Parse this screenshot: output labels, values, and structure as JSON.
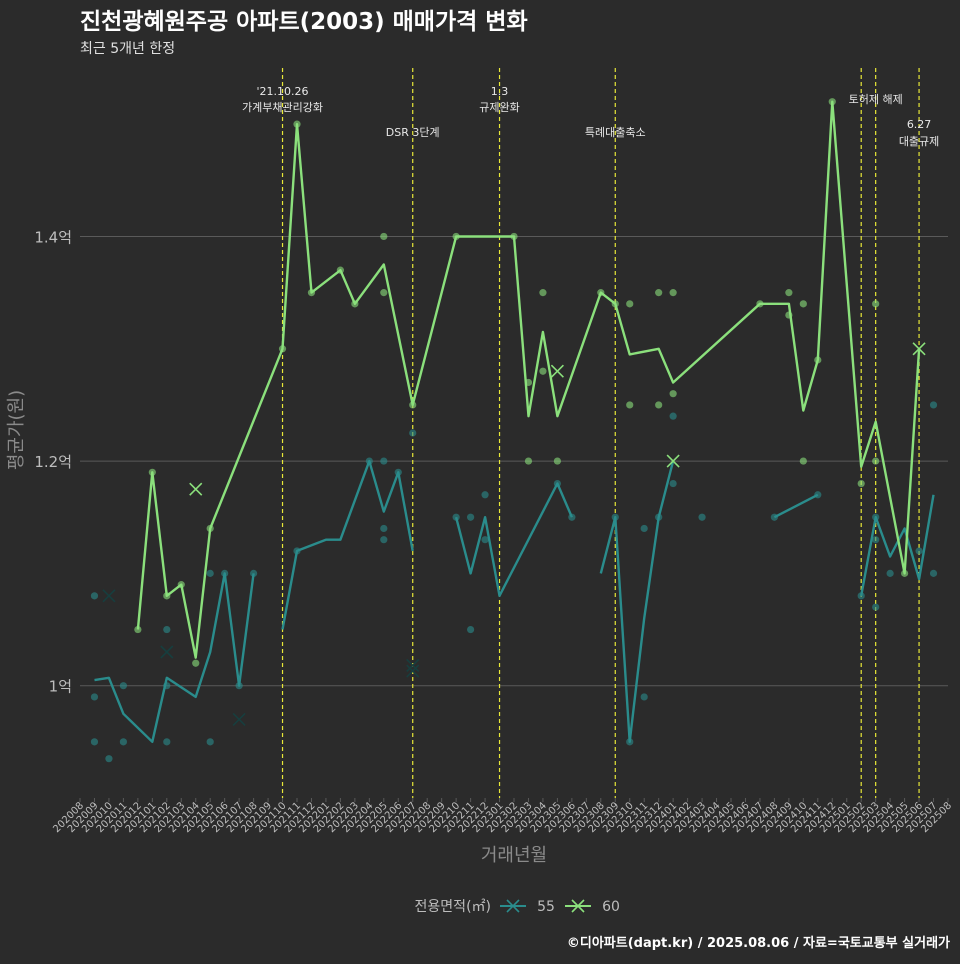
{
  "header": {
    "title": "진천광혜원주공 아파트(2003) 매매가격 변화",
    "subtitle": "최근 5개년 한정"
  },
  "footer": {
    "credit": "©디아파트(dapt.kr) / 2025.08.06 / 자료=국토교통부 실거래가"
  },
  "colors": {
    "s55": "#2a8c8c",
    "s60": "#8be07c",
    "vline": "#e8e838",
    "grid": "#5a5a5a",
    "text": "#bdbdbd"
  },
  "chart_data": {
    "type": "line",
    "xlabel": "거래년월",
    "ylabel": "평균가(원)",
    "ylim": [
      0.9,
      1.55
    ],
    "y_ticks": [
      1.0,
      1.2,
      1.4
    ],
    "y_tick_labels": [
      "1억",
      "1.2억",
      "1.4억"
    ],
    "x": [
      "202008",
      "202009",
      "202010",
      "202011",
      "202012",
      "202101",
      "202102",
      "202103",
      "202104",
      "202105",
      "202106",
      "202107",
      "202108",
      "202109",
      "202110",
      "202111",
      "202112",
      "202201",
      "202202",
      "202203",
      "202204",
      "202205",
      "202206",
      "202207",
      "202208",
      "202209",
      "202210",
      "202211",
      "202212",
      "202301",
      "202302",
      "202303",
      "202304",
      "202305",
      "202306",
      "202307",
      "202308",
      "202309",
      "202310",
      "202311",
      "202312",
      "202401",
      "202402",
      "202403",
      "202404",
      "202405",
      "202406",
      "202407",
      "202408",
      "202409",
      "202410",
      "202411",
      "202412",
      "202501",
      "202502",
      "202503",
      "202504",
      "202505",
      "202506",
      "202507",
      "202508"
    ],
    "legend": {
      "title": "전용면적(㎡)",
      "position": "bottom",
      "entries": [
        "55",
        "60"
      ]
    },
    "series": [
      {
        "name": "55",
        "line": [
          [
            1.0,
            1.005
          ],
          [
            2.0,
            1.007
          ],
          [
            3.0,
            0.975
          ],
          [
            5.0,
            0.95
          ],
          [
            6.0,
            1.007
          ],
          [
            8.0,
            0.99
          ],
          [
            9.0,
            1.03
          ],
          [
            10.0,
            1.1
          ],
          [
            11.0,
            1.0
          ],
          [
            12.0,
            1.1
          ],
          null,
          [
            14.0,
            1.05
          ],
          [
            15.0,
            1.12
          ],
          [
            17.0,
            1.13
          ],
          [
            18.0,
            1.13
          ],
          [
            20.0,
            1.2
          ],
          [
            21.0,
            1.155
          ],
          [
            22.0,
            1.19
          ],
          [
            23.0,
            1.12
          ],
          null,
          [
            26.0,
            1.15
          ],
          [
            27.0,
            1.1
          ],
          [
            28.0,
            1.15
          ],
          [
            29.0,
            1.08
          ],
          [
            33.0,
            1.18
          ],
          [
            34.0,
            1.15
          ],
          null,
          [
            36.0,
            1.1
          ],
          [
            37.0,
            1.15
          ],
          [
            38.0,
            0.95
          ],
          [
            39.0,
            1.06
          ],
          [
            40.0,
            1.15
          ],
          [
            41.0,
            1.2
          ],
          null,
          [
            48.0,
            1.15
          ],
          [
            51.0,
            1.17
          ],
          null,
          [
            54.0,
            1.08
          ],
          [
            55.0,
            1.15
          ],
          [
            56.0,
            1.115
          ],
          [
            57.0,
            1.14
          ],
          [
            58.0,
            1.095
          ],
          [
            59.0,
            1.17
          ]
        ],
        "points": [
          [
            1,
            1.08
          ],
          [
            1,
            0.99
          ],
          [
            1,
            0.95
          ],
          [
            2,
            0.935
          ],
          [
            3,
            0.95
          ],
          [
            3,
            1.0
          ],
          [
            6,
            1.05
          ],
          [
            6,
            0.95
          ],
          [
            6,
            1.0
          ],
          [
            9,
            1.1
          ],
          [
            9,
            0.95
          ],
          [
            10,
            1.1
          ],
          [
            11,
            1.0
          ],
          [
            12,
            1.1
          ],
          [
            15,
            1.12
          ],
          [
            20,
            1.2
          ],
          [
            21,
            1.2
          ],
          [
            21,
            1.14
          ],
          [
            21,
            1.13
          ],
          [
            22,
            1.19
          ],
          [
            23,
            1.225
          ],
          [
            26,
            1.15
          ],
          [
            27,
            1.05
          ],
          [
            27,
            1.15
          ],
          [
            28,
            1.17
          ],
          [
            28,
            1.13
          ],
          [
            33,
            1.18
          ],
          [
            34,
            1.15
          ],
          [
            37,
            1.15
          ],
          [
            38,
            0.95
          ],
          [
            39,
            0.99
          ],
          [
            39,
            1.14
          ],
          [
            40,
            1.15
          ],
          [
            41,
            1.24
          ],
          [
            41,
            1.18
          ],
          [
            43,
            1.15
          ],
          [
            48,
            1.15
          ],
          [
            51,
            1.17
          ],
          [
            54,
            1.08
          ],
          [
            55,
            1.07
          ],
          [
            55,
            1.13
          ],
          [
            55,
            1.15
          ],
          [
            56,
            1.1
          ],
          [
            58,
            1.12
          ],
          [
            59,
            1.25
          ],
          [
            59,
            1.1
          ]
        ],
        "crosses": [
          [
            2,
            1.08
          ],
          [
            6,
            1.03
          ],
          [
            11,
            0.97
          ],
          [
            23,
            1.013
          ],
          [
            23,
            1.018
          ]
        ]
      },
      {
        "name": "60",
        "line": [
          [
            4.0,
            1.05
          ],
          [
            5.0,
            1.19
          ],
          [
            6.0,
            1.08
          ],
          [
            7.0,
            1.09
          ],
          [
            8.0,
            1.025
          ],
          [
            9.0,
            1.14
          ],
          [
            14.0,
            1.3
          ],
          [
            15.0,
            1.5
          ],
          [
            16.0,
            1.35
          ],
          [
            18.0,
            1.37
          ],
          [
            19.0,
            1.34
          ],
          [
            21.0,
            1.375
          ],
          [
            23.0,
            1.25
          ],
          [
            26.0,
            1.4
          ],
          [
            30.0,
            1.4
          ],
          [
            31.0,
            1.24
          ],
          [
            32.0,
            1.315
          ],
          [
            33.0,
            1.24
          ],
          [
            36.0,
            1.35
          ],
          [
            37.0,
            1.34
          ],
          [
            38.0,
            1.295
          ],
          [
            40.0,
            1.3
          ],
          [
            41.0,
            1.27
          ],
          [
            47.0,
            1.34
          ],
          [
            49.0,
            1.34
          ],
          [
            50.0,
            1.245
          ],
          [
            51.0,
            1.29
          ],
          [
            52.0,
            1.52
          ],
          [
            54.0,
            1.195
          ],
          [
            55.0,
            1.235
          ],
          [
            57.0,
            1.1
          ],
          [
            58.0,
            1.3
          ]
        ],
        "points": [
          [
            4,
            1.05
          ],
          [
            5,
            1.19
          ],
          [
            6,
            1.08
          ],
          [
            7,
            1.09
          ],
          [
            8,
            1.02
          ],
          [
            9,
            1.14
          ],
          [
            14,
            1.3
          ],
          [
            15,
            1.5
          ],
          [
            16,
            1.35
          ],
          [
            18,
            1.37
          ],
          [
            19,
            1.34
          ],
          [
            21,
            1.4
          ],
          [
            21,
            1.35
          ],
          [
            23,
            1.25
          ],
          [
            26,
            1.4
          ],
          [
            30,
            1.4
          ],
          [
            31,
            1.27
          ],
          [
            31,
            1.2
          ],
          [
            32,
            1.35
          ],
          [
            32,
            1.28
          ],
          [
            33,
            1.2
          ],
          [
            36,
            1.35
          ],
          [
            37,
            1.34
          ],
          [
            38,
            1.34
          ],
          [
            38,
            1.25
          ],
          [
            40,
            1.35
          ],
          [
            40,
            1.25
          ],
          [
            41,
            1.35
          ],
          [
            41,
            1.26
          ],
          [
            47,
            1.34
          ],
          [
            49,
            1.35
          ],
          [
            49,
            1.33
          ],
          [
            50,
            1.34
          ],
          [
            50,
            1.2
          ],
          [
            51,
            1.29
          ],
          [
            52,
            1.52
          ],
          [
            54,
            1.18
          ],
          [
            55,
            1.34
          ],
          [
            55,
            1.2
          ],
          [
            57,
            1.1
          ]
        ],
        "crosses": [
          [
            8,
            1.175
          ],
          [
            33,
            1.28
          ],
          [
            41,
            1.2
          ],
          [
            58,
            1.3
          ]
        ]
      }
    ],
    "annotations": [
      {
        "x": 14.0,
        "label": "'21.10.26",
        "label2": "가계부채관리강화",
        "row": 1
      },
      {
        "x": 23.0,
        "label": "DSR 3단계",
        "label2": "",
        "row": 2
      },
      {
        "x": 29.0,
        "label": "1.3",
        "label2": "규제완화",
        "row": 1
      },
      {
        "x": 37.0,
        "label": "특례대출축소",
        "label2": "",
        "row": 2
      },
      {
        "x": 54.0,
        "label": "",
        "label2": "",
        "row": 0
      },
      {
        "x": 55.0,
        "label": "토허제 해제",
        "label2": "",
        "row": 3
      },
      {
        "x": 58.0,
        "label": "6.27",
        "label2": "대출규제",
        "row": 4
      }
    ]
  }
}
